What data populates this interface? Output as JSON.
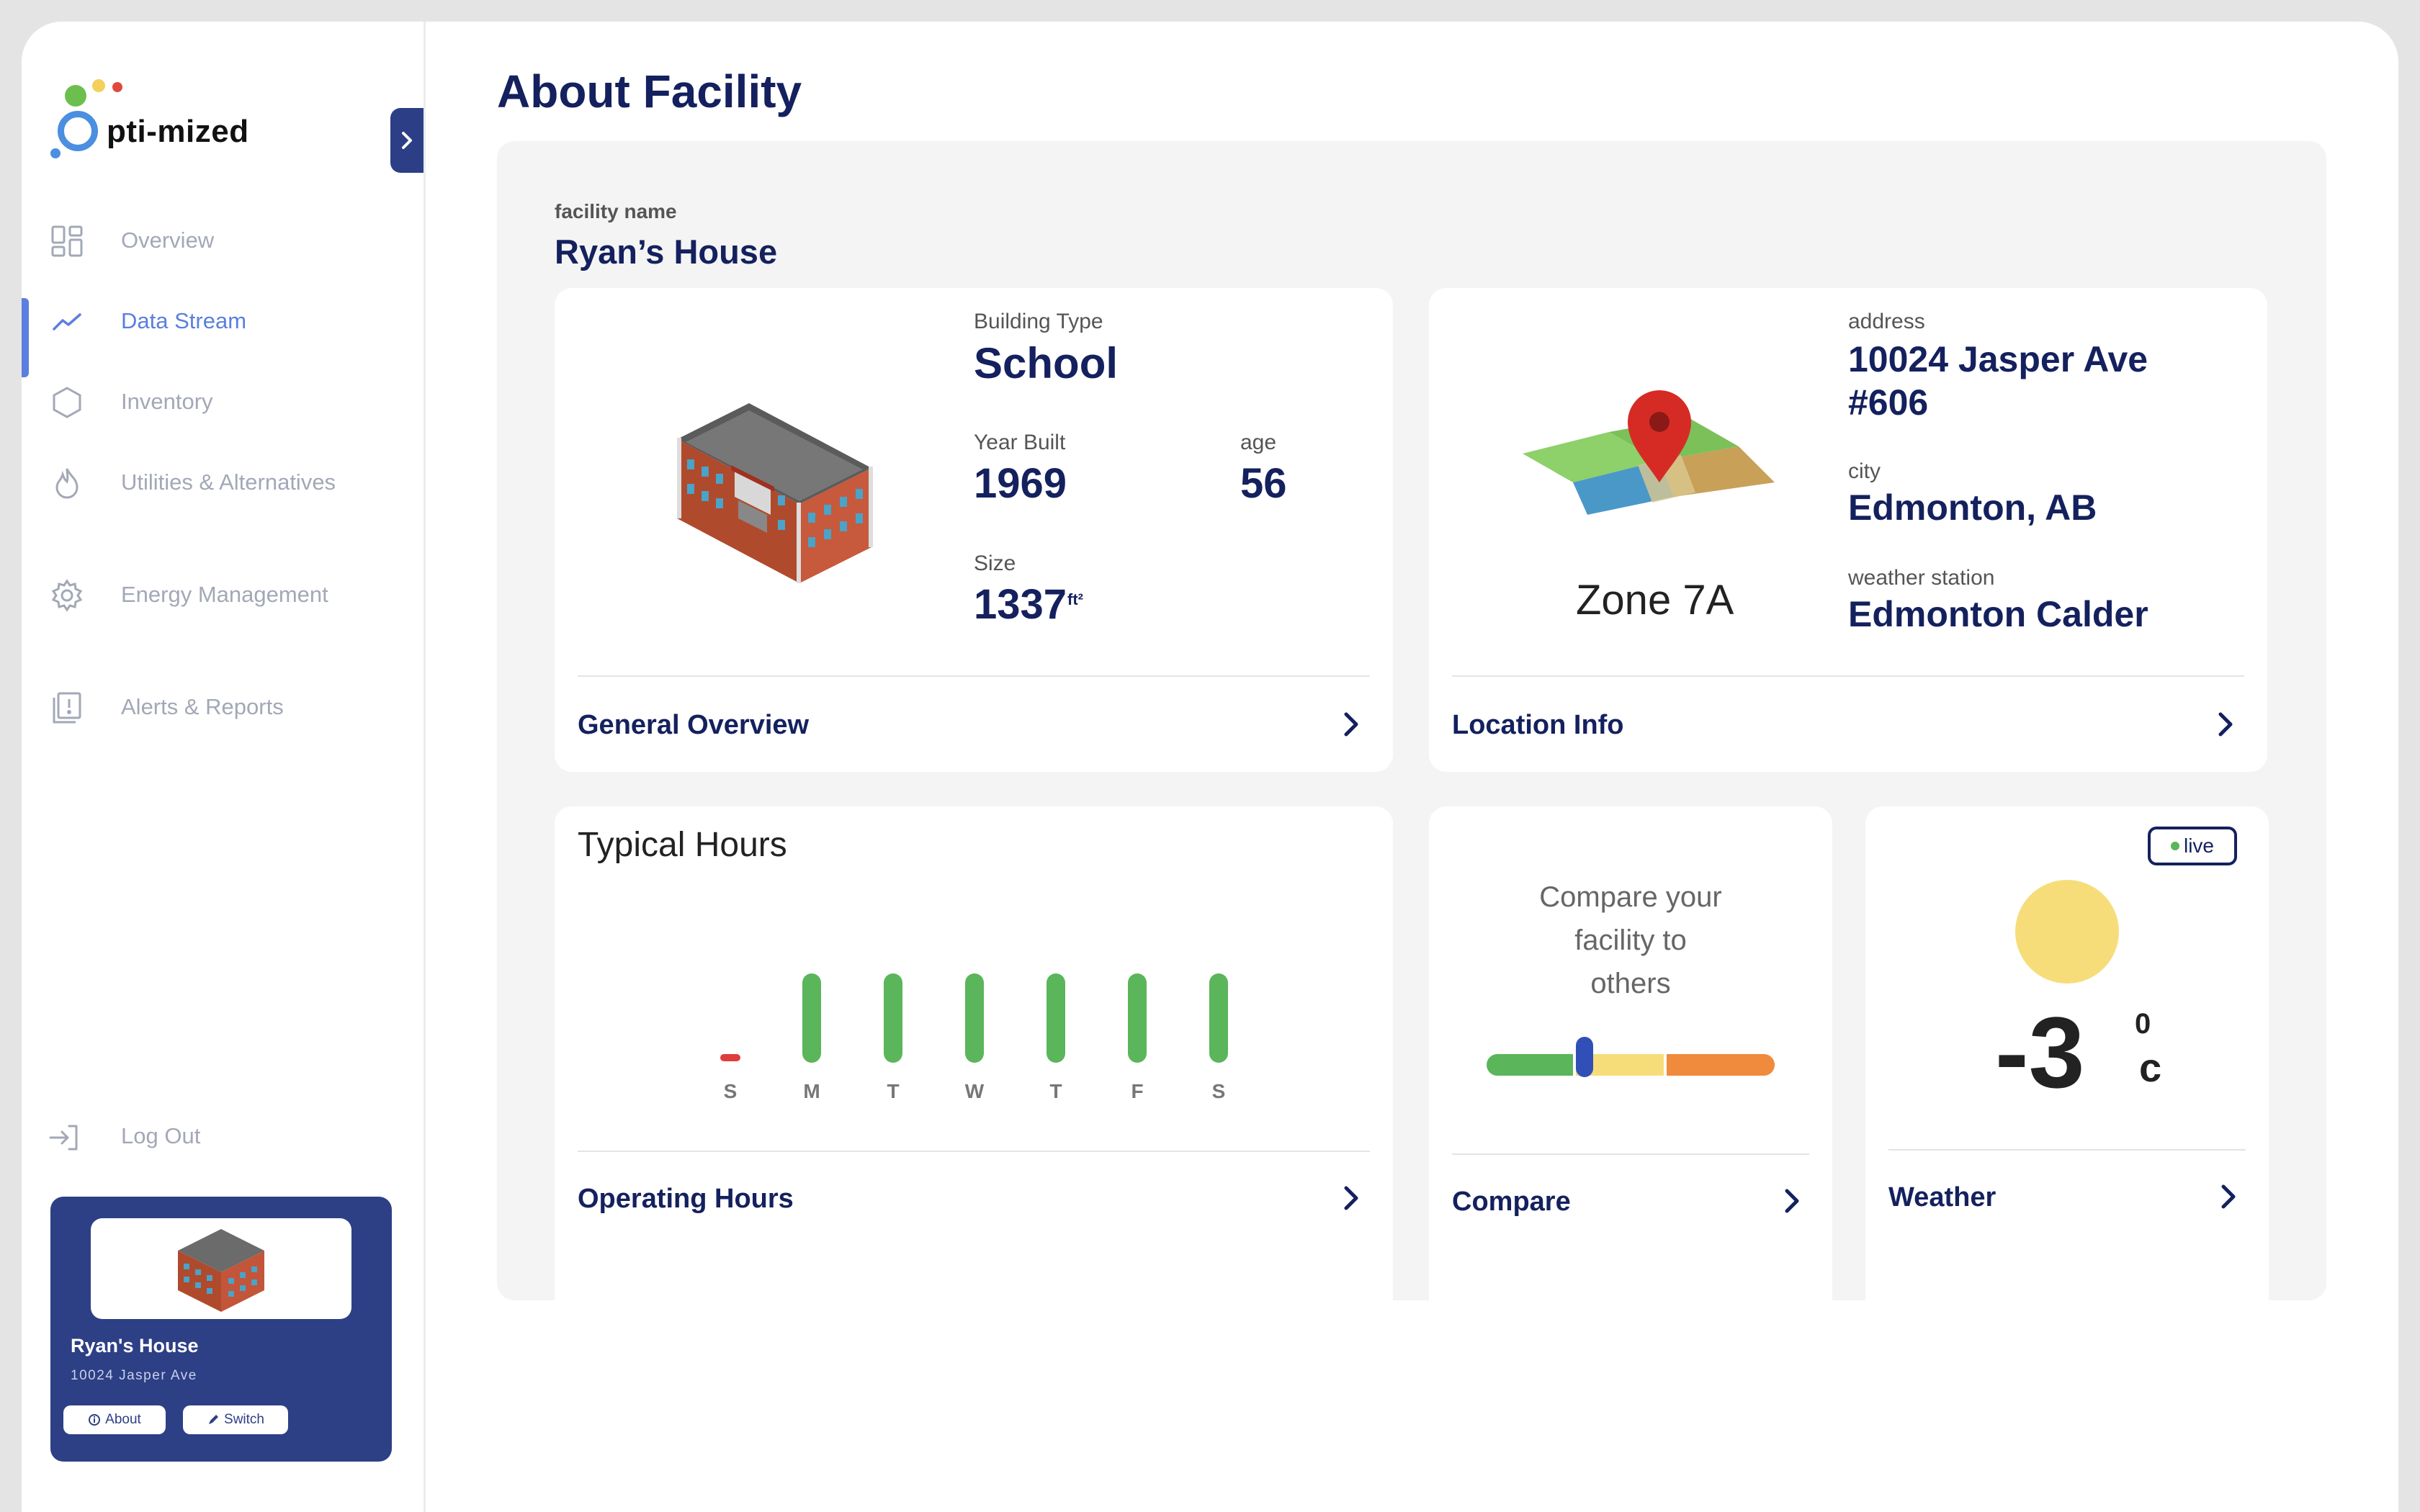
{
  "brand": {
    "name": "pti-mized",
    "initial": "O"
  },
  "sidebar": {
    "items": [
      {
        "label": "Overview",
        "icon": "grid-icon"
      },
      {
        "label": "Data Stream",
        "icon": "trend-icon",
        "active": true
      },
      {
        "label": "Inventory",
        "icon": "hexagon-icon"
      },
      {
        "label": "Utilities & Alternatives",
        "icon": "flame-icon"
      },
      {
        "label": "Energy Management",
        "icon": "gear-icon"
      },
      {
        "label": "Alerts & Reports",
        "icon": "report-icon"
      }
    ],
    "logout_label": "Log Out",
    "facility": {
      "name": "Ryan's House",
      "address": "10024 Jasper Ave",
      "about_label": "About",
      "switch_label": "Switch"
    }
  },
  "page": {
    "title": "About Facility",
    "facility_label": "facility name",
    "facility_name": "Ryan’s House"
  },
  "overview_card": {
    "building_type_label": "Building Type",
    "building_type": "School",
    "year_built_label": "Year Built",
    "year_built": "1969",
    "age_label": "age",
    "age": "56",
    "size_label": "Size",
    "size": "1337",
    "size_unit": "ft²",
    "footer": "General Overview"
  },
  "location_card": {
    "zone": "Zone 7A",
    "address_label": "address",
    "address_line1": "10024 Jasper Ave",
    "address_line2": "#606",
    "city_label": "city",
    "city": "Edmonton, AB",
    "station_label": "weather station",
    "station": "Edmonton Calder",
    "footer": "Location Info"
  },
  "hours_card": {
    "title": "Typical Hours",
    "days": [
      {
        "label": "S",
        "open": false
      },
      {
        "label": "M",
        "open": true
      },
      {
        "label": "T",
        "open": true
      },
      {
        "label": "W",
        "open": true
      },
      {
        "label": "T",
        "open": true
      },
      {
        "label": "F",
        "open": true
      },
      {
        "label": "S",
        "open": true
      }
    ],
    "footer": "Operating Hours"
  },
  "compare_card": {
    "text_line1": "Compare your",
    "text_line2": "facility to",
    "text_line3": "others",
    "footer": "Compare"
  },
  "weather_card": {
    "live_label": "live",
    "temp": "-3",
    "degree": "0",
    "unit": "c",
    "footer": "Weather"
  },
  "colors": {
    "navy": "#14215e",
    "accent": "#5b7fde",
    "green": "#5bb55a",
    "red": "#e03c3c",
    "yellow": "#f7dd7a",
    "orange": "#f08a3c"
  }
}
